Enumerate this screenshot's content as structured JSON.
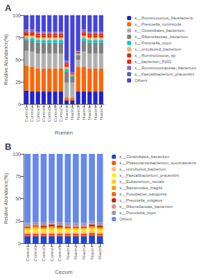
{
  "chart_data": [
    {
      "type": "bar",
      "stacked": true,
      "title": "A",
      "xlabel": "Rumen",
      "ylabel": "Relative Abundance(%)",
      "categories": [
        "Control1",
        "Control2",
        "Control3",
        "Control4",
        "Control5",
        "Control6",
        "Control7",
        "Niacin1",
        "Niacin2",
        "Niacin3",
        "Niacin4",
        "Niacin5",
        "Niacin6",
        "Niacin7"
      ],
      "series": [
        {
          "name": "s__Ruminococcus_flavefaciens",
          "color": "#2222cc",
          "values": [
            15,
            14,
            14,
            14,
            14,
            14,
            14,
            4,
            4,
            14,
            14,
            14,
            14,
            14
          ]
        },
        {
          "name": "s__Prevotella_ruminicola",
          "color": "#ff6600",
          "values": [
            28,
            28,
            26,
            26,
            26,
            26,
            26,
            3,
            3,
            28,
            28,
            26,
            26,
            26
          ]
        },
        {
          "name": "s__Clostridiales_bacterium",
          "color": "#b0b0b0",
          "values": [
            17,
            17,
            17,
            17,
            17,
            17,
            17,
            17,
            17,
            8,
            17,
            17,
            17,
            17
          ]
        },
        {
          "name": "s__Rikenellaceae_bacterium",
          "color": "#808080",
          "values": [
            12,
            12,
            12,
            12,
            12,
            12,
            12,
            12,
            7,
            5,
            12,
            12,
            12,
            12
          ]
        },
        {
          "name": "s__Prevotella_copri",
          "color": "#00cccc",
          "values": [
            2,
            3,
            3,
            3,
            3,
            3,
            3,
            3,
            1,
            1,
            3,
            3,
            3,
            3
          ]
        },
        {
          "name": "s__uncultured_bacterium",
          "color": "#ffaa66",
          "values": [
            3,
            3,
            3,
            3,
            3,
            3,
            3,
            3,
            1,
            1,
            3,
            3,
            3,
            3
          ]
        },
        {
          "name": "s__Ruminococcus_sp",
          "color": "#cc3300",
          "values": [
            2,
            2,
            2,
            2,
            2,
            2,
            2,
            2,
            1,
            1,
            2,
            2,
            2,
            2
          ]
        },
        {
          "name": "s__bacterium_P201",
          "color": "#ff2200",
          "values": [
            2,
            2,
            2,
            2,
            2,
            2,
            2,
            2,
            1,
            1,
            2,
            2,
            2,
            2
          ]
        },
        {
          "name": "s__Ruminococcaceae_bacterium",
          "color": "#9966cc",
          "values": [
            2,
            2,
            2,
            2,
            2,
            2,
            2,
            2,
            1,
            1,
            2,
            2,
            2,
            2
          ]
        },
        {
          "name": "s__Faecalibacterium_prausnitzii",
          "color": "#5566aa",
          "values": [
            1,
            1,
            1,
            1,
            1,
            1,
            1,
            1,
            0,
            0,
            1,
            1,
            1,
            1
          ]
        },
        {
          "name": "Others",
          "color": "#4444dd",
          "values": [
            16,
            16,
            18,
            18,
            18,
            18,
            18,
            51,
            64,
            40,
            16,
            18,
            18,
            18
          ]
        }
      ],
      "ylim": [
        0,
        100
      ],
      "yticks": [
        0,
        25,
        50,
        75,
        100
      ],
      "grid": false,
      "legend": "right"
    },
    {
      "type": "bar",
      "stacked": true,
      "title": "B",
      "xlabel": "Cecum",
      "ylabel": "Relative Abundance(%)",
      "categories": [
        "Control1",
        "Control2",
        "Control3",
        "Control4",
        "Control5",
        "Niacin1",
        "Niacin2",
        "Niacin3",
        "Niacin4",
        "Niacin5"
      ],
      "series": [
        {
          "name": "s__Clostridiales_bacterium",
          "color": "#2244cc",
          "values": [
            8,
            8,
            8,
            8,
            8,
            8,
            8,
            8,
            9,
            8
          ]
        },
        {
          "name": "s__Phascolarctobacterium_succinatutens",
          "color": "#ff5500",
          "values": [
            3,
            3,
            3,
            3,
            3,
            3,
            3,
            3,
            3,
            3
          ]
        },
        {
          "name": "s__uncultured_bacterium",
          "color": "#ffbb88",
          "values": [
            2,
            2,
            2,
            2,
            2,
            2,
            2,
            2,
            2,
            2
          ]
        },
        {
          "name": "s__Faecalibacterium_prausnitzii",
          "color": "#ffee00",
          "values": [
            2,
            2,
            2,
            2,
            2,
            2,
            2,
            2,
            2,
            2
          ]
        },
        {
          "name": "s__Eubacterium_rectale",
          "color": "#ffcc00",
          "values": [
            1,
            2,
            1,
            2,
            1,
            1,
            1,
            1,
            1,
            1
          ]
        },
        {
          "name": "s__Bacteroides_fragilis",
          "color": "#ff9900",
          "values": [
            1,
            1,
            1,
            1,
            1,
            1,
            1,
            1,
            1,
            1
          ]
        },
        {
          "name": "s__Fusobacter_sanguinis",
          "color": "#ff6600",
          "values": [
            1,
            1,
            1,
            1,
            1,
            1,
            1,
            1,
            1,
            1
          ]
        },
        {
          "name": "s__Prevotella_vulgatus",
          "color": "#cc2200",
          "values": [
            1,
            1,
            2,
            2,
            2,
            1,
            1,
            1,
            2,
            2
          ]
        },
        {
          "name": "s__Rikenellaceae_bacterium",
          "color": "#cc9999",
          "values": [
            1,
            1,
            1,
            1,
            1,
            1,
            1,
            1,
            1,
            1
          ]
        },
        {
          "name": "s__Prevotella_copri",
          "color": "#9999bb",
          "values": [
            3,
            3,
            3,
            3,
            3,
            3,
            3,
            3,
            3,
            3
          ]
        },
        {
          "name": "Others",
          "color": "#6688ee",
          "values": [
            77,
            76,
            76,
            75,
            76,
            77,
            77,
            77,
            75,
            76
          ]
        }
      ],
      "ylim": [
        0,
        100
      ],
      "yticks": [
        0,
        25,
        50,
        75,
        100
      ],
      "grid": false,
      "legend": "right"
    }
  ]
}
